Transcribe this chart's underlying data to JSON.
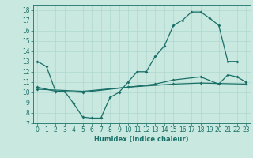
{
  "xlabel": "Humidex (Indice chaleur)",
  "background_color": "#c8e8e0",
  "grid_color": "#b0d8d0",
  "line_color": "#1a7068",
  "xlim": [
    -0.5,
    23.5
  ],
  "ylim": [
    7,
    18.5
  ],
  "yticks": [
    7,
    8,
    9,
    10,
    11,
    12,
    13,
    14,
    15,
    16,
    17,
    18
  ],
  "xticks": [
    0,
    1,
    2,
    3,
    4,
    5,
    6,
    7,
    8,
    9,
    10,
    11,
    12,
    13,
    14,
    15,
    16,
    17,
    18,
    19,
    20,
    21,
    22,
    23
  ],
  "main_x": [
    0,
    1,
    2,
    3,
    4,
    5,
    6,
    7,
    8,
    9,
    10,
    11,
    12,
    13,
    14,
    15,
    16,
    17,
    18,
    19,
    20,
    21,
    22
  ],
  "main_y": [
    13.0,
    12.5,
    10.1,
    10.1,
    8.9,
    7.6,
    7.5,
    7.5,
    9.5,
    10.0,
    11.0,
    12.0,
    12.0,
    13.5,
    14.5,
    16.5,
    17.0,
    17.8,
    17.8,
    17.2,
    16.5,
    13.0,
    13.0
  ],
  "mid_x": [
    0,
    2,
    5,
    10,
    13,
    15,
    18,
    20,
    21,
    22,
    23
  ],
  "mid_y": [
    10.5,
    10.1,
    10.0,
    10.5,
    10.8,
    11.2,
    11.5,
    10.8,
    11.7,
    11.5,
    11.0
  ],
  "low_x": [
    0,
    5,
    10,
    15,
    18,
    23
  ],
  "low_y": [
    10.3,
    10.1,
    10.5,
    10.8,
    10.9,
    10.8
  ],
  "xlabel_fontsize": 6.0,
  "tick_fontsize": 5.5,
  "linewidth": 0.9,
  "markersize": 2.0
}
